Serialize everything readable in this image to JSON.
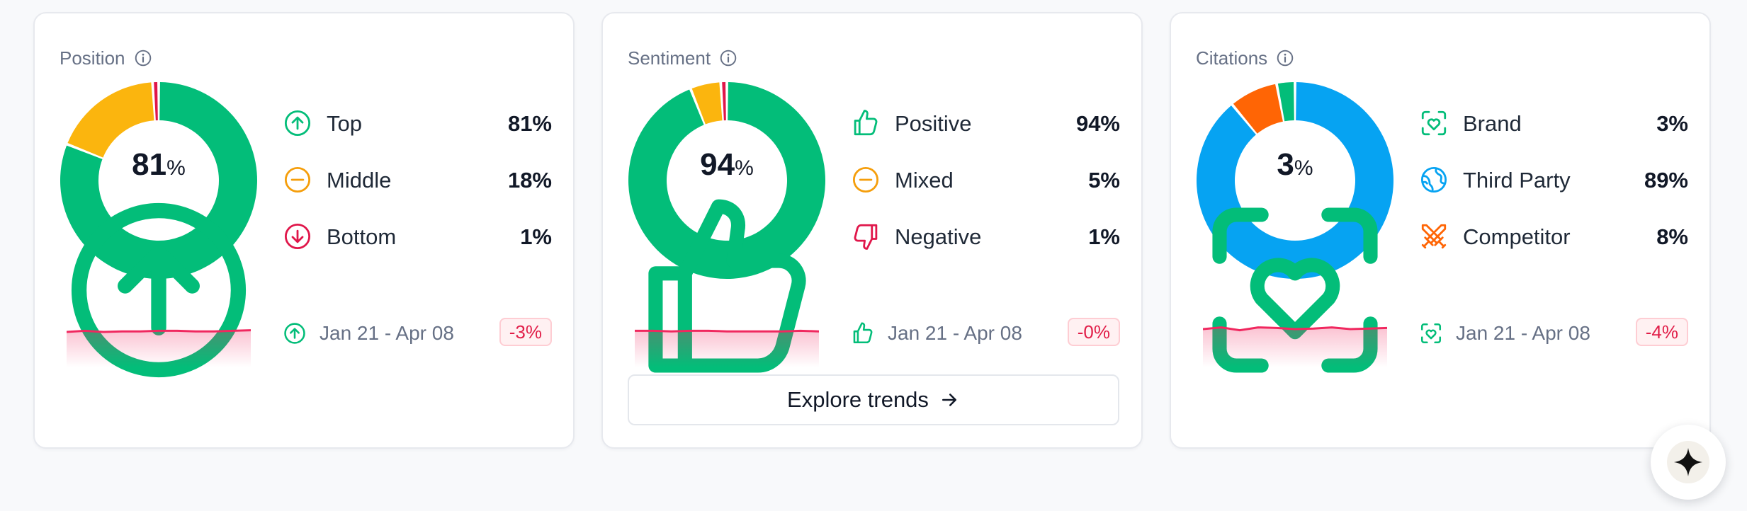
{
  "colors": {
    "green": "#03bd79",
    "amber": "#fbb50e",
    "red": "#e0164a",
    "blue": "#06a3f2",
    "orange": "#ff6505",
    "spark_line": "#f0285f"
  },
  "cards": {
    "position": {
      "title": "Position",
      "center_value": "81",
      "center_unit": "%",
      "center_icon": "arrow-up-circle-icon",
      "legend": [
        {
          "label": "Top",
          "value": "81%",
          "icon": "arrow-up-circle-icon"
        },
        {
          "label": "Middle",
          "value": "18%",
          "icon": "minus-circle-icon"
        },
        {
          "label": "Bottom",
          "value": "1%",
          "icon": "arrow-down-circle-icon"
        }
      ],
      "date_range": "Jan 21 - Apr 08",
      "delta": "-3%"
    },
    "sentiment": {
      "title": "Sentiment",
      "center_value": "94",
      "center_unit": "%",
      "center_icon": "thumbs-up-icon",
      "legend": [
        {
          "label": "Positive",
          "value": "94%",
          "icon": "thumbs-up-icon"
        },
        {
          "label": "Mixed",
          "value": "5%",
          "icon": "minus-circle-icon"
        },
        {
          "label": "Negative",
          "value": "1%",
          "icon": "thumbs-down-icon"
        }
      ],
      "date_range": "Jan 21 - Apr 08",
      "delta": "-0%",
      "button_label": "Explore trends"
    },
    "citations": {
      "title": "Citations",
      "center_value": "3",
      "center_unit": "%",
      "center_icon": "heart-scan-icon",
      "legend": [
        {
          "label": "Brand",
          "value": "3%",
          "icon": "heart-scan-icon"
        },
        {
          "label": "Third Party",
          "value": "89%",
          "icon": "globe-icon"
        },
        {
          "label": "Competitor",
          "value": "8%",
          "icon": "crossed-swords-icon"
        }
      ],
      "date_range": "Jan 21 - Apr 08",
      "delta": "-4%"
    }
  },
  "donuts": {
    "position": [
      {
        "value": 81,
        "color": "#03bd79"
      },
      {
        "value": 18,
        "color": "#fbb50e"
      },
      {
        "value": 1,
        "color": "#e0164a"
      }
    ],
    "sentiment": [
      {
        "value": 94,
        "color": "#03bd79"
      },
      {
        "value": 5,
        "color": "#fbb50e"
      },
      {
        "value": 1,
        "color": "#e0164a"
      }
    ],
    "citations": [
      {
        "value": 89,
        "color": "#06a3f2"
      },
      {
        "value": 8,
        "color": "#ff6505"
      },
      {
        "value": 3,
        "color": "#03bd79"
      }
    ]
  },
  "sparks": {
    "position": [
      50,
      52,
      50,
      51,
      51,
      52,
      52,
      51,
      51,
      52,
      53
    ],
    "sentiment": [
      52,
      52,
      51,
      52,
      52,
      51,
      51,
      51,
      51,
      52,
      51
    ],
    "citations": [
      55,
      58,
      53,
      58,
      57,
      55,
      56,
      58,
      55,
      56,
      57
    ]
  },
  "fab_icon": "sparkle-star-icon"
}
